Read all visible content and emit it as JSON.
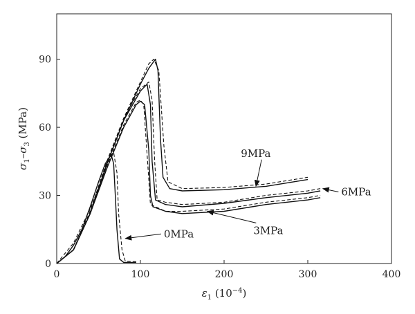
{
  "chart_data": {
    "type": "line",
    "xlabel_main": "ε",
    "xlabel_sub": "1",
    "xlabel_unit": " (10",
    "xlabel_exp": "−4",
    "xlabel_close": ")",
    "ylabel_s1": "σ",
    "ylabel_sub1": "1",
    "ylabel_dash": "–σ",
    "ylabel_sub3": "3",
    "ylabel_unit": " (MPa)",
    "xlim": [
      0,
      400
    ],
    "ylim": [
      0,
      110
    ],
    "x_ticks": [
      "0",
      "100",
      "200",
      "300",
      "400"
    ],
    "y_ticks": [
      "0",
      "30",
      "60",
      "90"
    ],
    "series_solid": [
      {
        "confining_pressure": "0MPa",
        "points": [
          [
            0,
            0
          ],
          [
            10,
            3
          ],
          [
            20,
            8
          ],
          [
            30,
            15
          ],
          [
            40,
            25
          ],
          [
            50,
            36
          ],
          [
            58,
            44
          ],
          [
            65,
            48
          ],
          [
            68,
            44
          ],
          [
            70,
            30
          ],
          [
            72,
            15
          ],
          [
            75,
            2
          ],
          [
            80,
            0.5
          ],
          [
            95,
            0.5
          ]
        ]
      },
      {
        "confining_pressure": "3MPa",
        "points": [
          [
            0,
            0
          ],
          [
            20,
            6
          ],
          [
            40,
            22
          ],
          [
            60,
            42
          ],
          [
            80,
            60
          ],
          [
            95,
            70
          ],
          [
            100,
            71.5
          ],
          [
            105,
            70
          ],
          [
            110,
            50
          ],
          [
            112,
            30
          ],
          [
            115,
            25
          ],
          [
            130,
            23
          ],
          [
            150,
            22
          ],
          [
            200,
            23
          ],
          [
            250,
            26
          ],
          [
            300,
            28
          ],
          [
            315,
            29
          ]
        ]
      },
      {
        "confining_pressure": "6MPa",
        "points": [
          [
            0,
            0
          ],
          [
            20,
            6
          ],
          [
            40,
            22
          ],
          [
            60,
            44
          ],
          [
            80,
            63
          ],
          [
            100,
            76
          ],
          [
            108,
            79
          ],
          [
            112,
            70
          ],
          [
            114,
            45
          ],
          [
            118,
            28
          ],
          [
            130,
            26
          ],
          [
            150,
            25
          ],
          [
            200,
            26.5
          ],
          [
            250,
            29
          ],
          [
            300,
            31
          ],
          [
            315,
            32
          ]
        ]
      },
      {
        "confining_pressure": "9MPa",
        "points": [
          [
            0,
            0
          ],
          [
            20,
            6
          ],
          [
            40,
            22
          ],
          [
            60,
            44
          ],
          [
            80,
            63
          ],
          [
            100,
            79
          ],
          [
            110,
            86
          ],
          [
            118,
            90
          ],
          [
            121,
            85
          ],
          [
            124,
            55
          ],
          [
            127,
            38
          ],
          [
            135,
            33
          ],
          [
            150,
            32
          ],
          [
            200,
            32.5
          ],
          [
            250,
            34
          ],
          [
            300,
            37
          ]
        ]
      }
    ],
    "series_dashed": [
      {
        "confining_pressure": "0MPa",
        "points": [
          [
            0,
            0
          ],
          [
            20,
            9
          ],
          [
            40,
            24
          ],
          [
            55,
            38
          ],
          [
            63,
            47
          ],
          [
            68,
            49
          ],
          [
            72,
            40
          ],
          [
            74,
            22
          ],
          [
            78,
            6
          ],
          [
            82,
            1
          ],
          [
            95,
            0.8
          ]
        ]
      },
      {
        "confining_pressure": "3MPa",
        "points": [
          [
            0,
            0
          ],
          [
            20,
            6
          ],
          [
            40,
            23
          ],
          [
            60,
            43
          ],
          [
            80,
            61
          ],
          [
            95,
            71
          ],
          [
            100,
            72
          ],
          [
            104,
            70
          ],
          [
            108,
            48
          ],
          [
            112,
            26
          ],
          [
            130,
            23
          ],
          [
            150,
            23
          ],
          [
            200,
            24
          ],
          [
            250,
            27
          ],
          [
            300,
            29
          ],
          [
            315,
            30
          ]
        ]
      },
      {
        "confining_pressure": "6MPa",
        "points": [
          [
            0,
            0
          ],
          [
            20,
            6
          ],
          [
            40,
            23
          ],
          [
            60,
            45
          ],
          [
            80,
            64
          ],
          [
            100,
            77
          ],
          [
            110,
            80
          ],
          [
            114,
            72
          ],
          [
            117,
            45
          ],
          [
            120,
            28
          ],
          [
            130,
            27
          ],
          [
            150,
            26
          ],
          [
            200,
            27
          ],
          [
            250,
            30
          ],
          [
            300,
            32
          ],
          [
            315,
            33
          ]
        ]
      },
      {
        "confining_pressure": "9MPa",
        "points": [
          [
            0,
            0
          ],
          [
            20,
            6
          ],
          [
            40,
            23
          ],
          [
            60,
            45
          ],
          [
            80,
            64
          ],
          [
            100,
            80
          ],
          [
            110,
            88
          ],
          [
            116,
            90
          ],
          [
            122,
            85
          ],
          [
            128,
            52
          ],
          [
            133,
            36
          ],
          [
            150,
            33
          ],
          [
            200,
            33.5
          ],
          [
            250,
            35
          ],
          [
            300,
            38
          ]
        ]
      }
    ],
    "annotations": [
      {
        "text": "0MPa",
        "x": 128,
        "y": 11.5,
        "arrow_to": [
          82,
          11
        ]
      },
      {
        "text": "3MPa",
        "x": 235,
        "y": 13,
        "arrow_to": [
          180,
          23
        ]
      },
      {
        "text": "6MPa",
        "x": 340,
        "y": 30,
        "arrow_to": [
          318,
          33
        ]
      },
      {
        "text": "9MPa",
        "x": 220,
        "y": 47,
        "arrow_to": [
          238,
          34
        ]
      }
    ]
  }
}
